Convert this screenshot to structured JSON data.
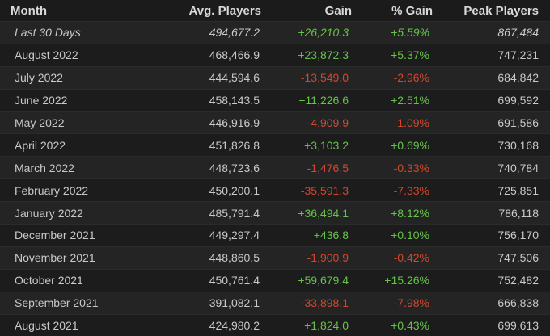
{
  "colors": {
    "positive": "#66c24a",
    "negative": "#d1472d",
    "text": "#c9c9c9",
    "background": "#1b1b1b"
  },
  "headers": {
    "month": "Month",
    "avg_players": "Avg. Players",
    "gain": "Gain",
    "pct_gain": "% Gain",
    "peak_players": "Peak Players"
  },
  "rows": [
    {
      "month": "Last 30 Days",
      "avg": "494,677.2",
      "gain": "+26,210.3",
      "pct": "+5.59%",
      "peak": "867,484",
      "trend": "pos"
    },
    {
      "month": "August 2022",
      "avg": "468,466.9",
      "gain": "+23,872.3",
      "pct": "+5.37%",
      "peak": "747,231",
      "trend": "pos"
    },
    {
      "month": "July 2022",
      "avg": "444,594.6",
      "gain": "-13,549.0",
      "pct": "-2.96%",
      "peak": "684,842",
      "trend": "neg"
    },
    {
      "month": "June 2022",
      "avg": "458,143.5",
      "gain": "+11,226.6",
      "pct": "+2.51%",
      "peak": "699,592",
      "trend": "pos"
    },
    {
      "month": "May 2022",
      "avg": "446,916.9",
      "gain": "-4,909.9",
      "pct": "-1.09%",
      "peak": "691,586",
      "trend": "neg"
    },
    {
      "month": "April 2022",
      "avg": "451,826.8",
      "gain": "+3,103.2",
      "pct": "+0.69%",
      "peak": "730,168",
      "trend": "pos"
    },
    {
      "month": "March 2022",
      "avg": "448,723.6",
      "gain": "-1,476.5",
      "pct": "-0.33%",
      "peak": "740,784",
      "trend": "neg"
    },
    {
      "month": "February 2022",
      "avg": "450,200.1",
      "gain": "-35,591.3",
      "pct": "-7.33%",
      "peak": "725,851",
      "trend": "neg"
    },
    {
      "month": "January 2022",
      "avg": "485,791.4",
      "gain": "+36,494.1",
      "pct": "+8.12%",
      "peak": "786,118",
      "trend": "pos"
    },
    {
      "month": "December 2021",
      "avg": "449,297.4",
      "gain": "+436.8",
      "pct": "+0.10%",
      "peak": "756,170",
      "trend": "pos"
    },
    {
      "month": "November 2021",
      "avg": "448,860.5",
      "gain": "-1,900.9",
      "pct": "-0.42%",
      "peak": "747,506",
      "trend": "neg"
    },
    {
      "month": "October 2021",
      "avg": "450,761.4",
      "gain": "+59,679.4",
      "pct": "+15.26%",
      "peak": "752,482",
      "trend": "pos"
    },
    {
      "month": "September 2021",
      "avg": "391,082.1",
      "gain": "-33,898.1",
      "pct": "-7.98%",
      "peak": "666,838",
      "trend": "neg"
    },
    {
      "month": "August 2021",
      "avg": "424,980.2",
      "gain": "+1,824.0",
      "pct": "+0.43%",
      "peak": "699,613",
      "trend": "pos"
    }
  ]
}
